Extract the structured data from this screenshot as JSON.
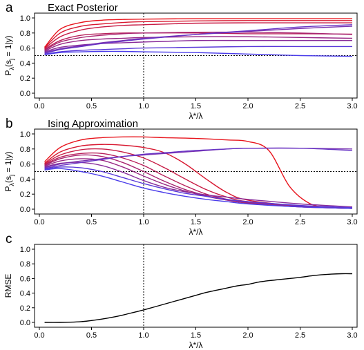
{
  "chart_data": [
    {
      "panel_letter": "a",
      "type": "line",
      "title": "Exact Posterior",
      "xlabel": "λ*/λ",
      "ylabel_main": "P",
      "ylabel_sub1": "λ",
      "ylabel_mid": "(s",
      "ylabel_sub2": "j",
      "ylabel_tail": " = 1|y)",
      "xlim": [
        0.0,
        3.0
      ],
      "ylim": [
        0.0,
        1.0
      ],
      "xticks": [
        "0.0",
        "0.5",
        "1.0",
        "1.5",
        "2.0",
        "2.5",
        "3.0"
      ],
      "yticks": [
        "0.0",
        "0.2",
        "0.4",
        "0.6",
        "0.8",
        "1.0"
      ],
      "refline_x": 1.0,
      "refline_y": 0.5,
      "series": [
        {
          "color": "#e8141c",
          "x": [
            0.05,
            0.2,
            0.4,
            0.6,
            0.8,
            1.0,
            1.5,
            2.0,
            2.5,
            3.0
          ],
          "y": [
            0.61,
            0.85,
            0.94,
            0.97,
            0.98,
            0.985,
            0.99,
            0.99,
            0.99,
            0.99
          ]
        },
        {
          "color": "#d81830",
          "x": [
            0.05,
            0.2,
            0.4,
            0.6,
            0.8,
            1.0,
            1.5,
            2.0,
            2.5,
            3.0
          ],
          "y": [
            0.6,
            0.8,
            0.89,
            0.92,
            0.94,
            0.95,
            0.96,
            0.965,
            0.965,
            0.965
          ]
        },
        {
          "color": "#c81c45",
          "x": [
            0.05,
            0.2,
            0.4,
            0.6,
            0.8,
            1.0,
            1.5,
            2.0,
            2.5,
            3.0
          ],
          "y": [
            0.59,
            0.75,
            0.84,
            0.88,
            0.9,
            0.91,
            0.93,
            0.935,
            0.935,
            0.935
          ]
        },
        {
          "color": "#b8205a",
          "x": [
            0.05,
            0.2,
            0.4,
            0.6,
            0.8,
            1.0,
            1.5,
            2.0,
            2.5,
            3.0
          ],
          "y": [
            0.58,
            0.7,
            0.77,
            0.79,
            0.8,
            0.8,
            0.8,
            0.79,
            0.79,
            0.785
          ]
        },
        {
          "color": "#a82470",
          "x": [
            0.05,
            0.2,
            0.4,
            0.6,
            0.8,
            1.0,
            1.5,
            2.0,
            2.5,
            3.0
          ],
          "y": [
            0.57,
            0.68,
            0.74,
            0.77,
            0.79,
            0.8,
            0.81,
            0.81,
            0.8,
            0.78
          ]
        },
        {
          "color": "#982885",
          "x": [
            0.05,
            0.2,
            0.4,
            0.6,
            0.8,
            1.0,
            1.5,
            2.0,
            2.5,
            3.0
          ],
          "y": [
            0.56,
            0.65,
            0.7,
            0.72,
            0.73,
            0.74,
            0.75,
            0.75,
            0.74,
            0.73
          ]
        },
        {
          "color": "#882c9a",
          "x": [
            0.05,
            0.2,
            0.4,
            0.6,
            0.8,
            1.0,
            1.5,
            2.0,
            2.5,
            3.0
          ],
          "y": [
            0.55,
            0.61,
            0.64,
            0.66,
            0.67,
            0.68,
            0.7,
            0.7,
            0.7,
            0.7
          ]
        },
        {
          "color": "#7830b0",
          "x": [
            0.05,
            0.2,
            0.4,
            0.6,
            0.8,
            1.0,
            1.5,
            2.0,
            2.5,
            3.0
          ],
          "y": [
            0.54,
            0.59,
            0.63,
            0.67,
            0.7,
            0.73,
            0.78,
            0.82,
            0.86,
            0.89
          ]
        },
        {
          "color": "#6834c5",
          "x": [
            0.05,
            0.2,
            0.4,
            0.6,
            0.8,
            1.0,
            1.5,
            2.0,
            2.5,
            3.0
          ],
          "y": [
            0.53,
            0.58,
            0.62,
            0.66,
            0.69,
            0.72,
            0.78,
            0.83,
            0.88,
            0.91
          ]
        },
        {
          "color": "#5838d8",
          "x": [
            0.05,
            0.2,
            0.4,
            0.6,
            0.8,
            1.0,
            1.5,
            2.0,
            2.5,
            3.0
          ],
          "y": [
            0.52,
            0.55,
            0.57,
            0.58,
            0.59,
            0.6,
            0.61,
            0.62,
            0.62,
            0.62
          ]
        },
        {
          "color": "#4a3cea",
          "x": [
            0.05,
            0.2,
            0.4,
            0.6,
            0.8,
            1.0,
            1.5,
            2.0,
            2.5,
            3.0
          ],
          "y": [
            0.51,
            0.54,
            0.55,
            0.555,
            0.555,
            0.55,
            0.54,
            0.52,
            0.5,
            0.49
          ]
        }
      ]
    },
    {
      "panel_letter": "b",
      "type": "line",
      "title": "Ising Approximation",
      "xlabel": "λ*/λ",
      "ylabel_main": "P",
      "ylabel_sub1": "λ",
      "ylabel_mid": "(s",
      "ylabel_sub2": "j",
      "ylabel_tail": " = 1|y)",
      "xlim": [
        0.0,
        3.0
      ],
      "ylim": [
        0.0,
        1.0
      ],
      "xticks": [
        "0.0",
        "0.5",
        "1.0",
        "1.5",
        "2.0",
        "2.5",
        "3.0"
      ],
      "yticks": [
        "0.0",
        "0.2",
        "0.4",
        "0.6",
        "0.8",
        "1.0"
      ],
      "refline_x": 1.0,
      "refline_y": 0.5,
      "series": [
        {
          "color": "#e8141c",
          "x": [
            0.05,
            0.2,
            0.4,
            0.6,
            0.8,
            1.0,
            1.2,
            1.5,
            1.8,
            2.0,
            2.2,
            2.4,
            2.6,
            2.8,
            3.0
          ],
          "y": [
            0.63,
            0.82,
            0.92,
            0.95,
            0.96,
            0.96,
            0.95,
            0.94,
            0.92,
            0.9,
            0.78,
            0.3,
            0.07,
            0.02,
            0.01
          ]
        },
        {
          "color": "#d81830",
          "x": [
            0.05,
            0.2,
            0.4,
            0.6,
            0.8,
            1.0,
            1.2,
            1.4,
            1.6,
            1.8,
            2.0,
            2.5,
            3.0
          ],
          "y": [
            0.61,
            0.76,
            0.84,
            0.86,
            0.85,
            0.82,
            0.75,
            0.6,
            0.4,
            0.22,
            0.12,
            0.04,
            0.02
          ]
        },
        {
          "color": "#c81c45",
          "x": [
            0.05,
            0.2,
            0.4,
            0.6,
            0.8,
            1.0,
            1.2,
            1.4,
            1.6,
            1.8,
            2.0,
            2.5,
            3.0
          ],
          "y": [
            0.6,
            0.72,
            0.79,
            0.8,
            0.76,
            0.68,
            0.55,
            0.4,
            0.26,
            0.16,
            0.1,
            0.04,
            0.02
          ]
        },
        {
          "color": "#b8205a",
          "x": [
            0.05,
            0.2,
            0.4,
            0.6,
            0.8,
            1.0,
            1.2,
            1.4,
            1.6,
            1.8,
            2.0,
            2.5,
            3.0
          ],
          "y": [
            0.59,
            0.69,
            0.74,
            0.74,
            0.68,
            0.58,
            0.44,
            0.31,
            0.2,
            0.13,
            0.08,
            0.03,
            0.01
          ]
        },
        {
          "color": "#a82470",
          "x": [
            0.05,
            0.2,
            0.4,
            0.6,
            0.8,
            1.0,
            1.2,
            1.4,
            1.6,
            1.8,
            2.0,
            2.5,
            3.0
          ],
          "y": [
            0.58,
            0.67,
            0.72,
            0.7,
            0.62,
            0.5,
            0.37,
            0.26,
            0.18,
            0.12,
            0.08,
            0.03,
            0.01
          ]
        },
        {
          "color": "#982885",
          "x": [
            0.05,
            0.2,
            0.4,
            0.6,
            0.8,
            1.0,
            1.2,
            1.4,
            1.6,
            1.8,
            2.0,
            2.5,
            3.0
          ],
          "y": [
            0.57,
            0.64,
            0.67,
            0.65,
            0.56,
            0.44,
            0.33,
            0.24,
            0.17,
            0.12,
            0.09,
            0.04,
            0.02
          ]
        },
        {
          "color": "#882c9a",
          "x": [
            0.05,
            0.2,
            0.4,
            0.6,
            0.8,
            1.0,
            1.2,
            1.4,
            1.6,
            1.8,
            2.0,
            2.5,
            3.0
          ],
          "y": [
            0.56,
            0.61,
            0.62,
            0.58,
            0.49,
            0.38,
            0.29,
            0.23,
            0.19,
            0.16,
            0.13,
            0.07,
            0.03
          ]
        },
        {
          "color": "#7830b0",
          "x": [
            0.05,
            0.2,
            0.4,
            0.6,
            0.8,
            1.0,
            1.2,
            1.5,
            1.8,
            2.0,
            2.5,
            3.0
          ],
          "y": [
            0.55,
            0.6,
            0.64,
            0.67,
            0.7,
            0.72,
            0.74,
            0.77,
            0.8,
            0.81,
            0.81,
            0.8
          ]
        },
        {
          "color": "#6834c5",
          "x": [
            0.05,
            0.2,
            0.4,
            0.6,
            0.8,
            1.0,
            1.2,
            1.5,
            1.8,
            2.0,
            2.5,
            3.0
          ],
          "y": [
            0.54,
            0.58,
            0.62,
            0.66,
            0.7,
            0.73,
            0.75,
            0.78,
            0.8,
            0.81,
            0.81,
            0.78
          ]
        },
        {
          "color": "#5838d8",
          "x": [
            0.05,
            0.2,
            0.4,
            0.6,
            0.8,
            1.0,
            1.2,
            1.4,
            1.6,
            1.8,
            2.0,
            2.5,
            3.0
          ],
          "y": [
            0.53,
            0.56,
            0.55,
            0.5,
            0.42,
            0.34,
            0.27,
            0.21,
            0.17,
            0.13,
            0.1,
            0.05,
            0.02
          ]
        },
        {
          "color": "#4a3cea",
          "x": [
            0.05,
            0.2,
            0.4,
            0.6,
            0.8,
            1.0,
            1.2,
            1.4,
            1.6,
            1.8,
            2.0,
            2.5,
            3.0
          ],
          "y": [
            0.52,
            0.54,
            0.5,
            0.44,
            0.36,
            0.28,
            0.22,
            0.17,
            0.13,
            0.1,
            0.07,
            0.03,
            0.01
          ]
        }
      ]
    },
    {
      "panel_letter": "c",
      "type": "line",
      "title": "",
      "xlabel": "λ*/λ",
      "ylabel_main": "RMSE",
      "ylabel_sub1": "",
      "ylabel_mid": "",
      "ylabel_sub2": "",
      "ylabel_tail": "",
      "xlim": [
        0.0,
        3.0
      ],
      "ylim": [
        0.0,
        1.0
      ],
      "xticks": [
        "0.0",
        "0.5",
        "1.0",
        "1.5",
        "2.0",
        "2.5",
        "3.0"
      ],
      "yticks": [
        "0.0",
        "0.2",
        "0.4",
        "0.6",
        "0.8",
        "1.0"
      ],
      "refline_x": 1.0,
      "refline_y": null,
      "series": [
        {
          "color": "#000000",
          "x": [
            0.05,
            0.2,
            0.3,
            0.4,
            0.5,
            0.6,
            0.7,
            0.8,
            0.9,
            1.0,
            1.1,
            1.2,
            1.3,
            1.4,
            1.5,
            1.6,
            1.7,
            1.8,
            1.9,
            2.0,
            2.1,
            2.2,
            2.3,
            2.4,
            2.5,
            2.6,
            2.7,
            2.8,
            2.9,
            3.0
          ],
          "y": [
            0.0,
            0.0,
            0.003,
            0.01,
            0.025,
            0.045,
            0.07,
            0.1,
            0.135,
            0.17,
            0.21,
            0.25,
            0.29,
            0.33,
            0.37,
            0.41,
            0.44,
            0.47,
            0.5,
            0.52,
            0.55,
            0.57,
            0.585,
            0.6,
            0.615,
            0.635,
            0.65,
            0.66,
            0.665,
            0.665
          ]
        }
      ]
    }
  ]
}
